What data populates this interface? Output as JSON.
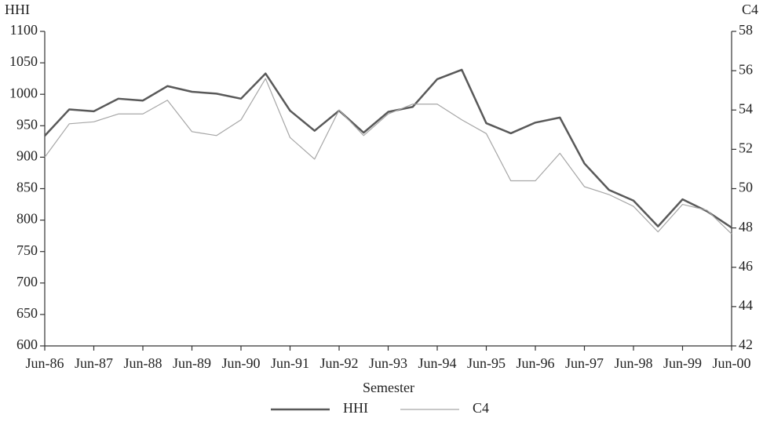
{
  "chart_data": {
    "type": "line",
    "y_label": "HHI",
    "y2_label": "C4",
    "x_label": "Semester",
    "categories": [
      "Jun-86",
      null,
      "Jun-87",
      null,
      "Jun-88",
      null,
      "Jun-89",
      null,
      "Jun-90",
      null,
      "Jun-91",
      null,
      "Jun-92",
      null,
      "Jun-93",
      null,
      "Jun-94",
      null,
      "Jun-95",
      null,
      "Jun-96",
      null,
      "Jun-97",
      null,
      "Jun-98",
      null,
      "Jun-99",
      null,
      "Jun-00"
    ],
    "series": [
      {
        "name": "HHI",
        "color": "#595959",
        "width": 2.5,
        "values": [
          934,
          976,
          973,
          993,
          990,
          1013,
          1004,
          1001,
          993,
          1033,
          974,
          942,
          974,
          939,
          972,
          980,
          1024,
          1039,
          954,
          938,
          955,
          963,
          890,
          848,
          831,
          790,
          833,
          814,
          788
        ]
      },
      {
        "name": "C4",
        "color": "#a6a6a6",
        "width": 1.2,
        "axis": "y2",
        "values": [
          51.6,
          53.3,
          53.4,
          53.8,
          53.8,
          54.5,
          52.9,
          52.7,
          53.5,
          55.6,
          52.6,
          51.5,
          54.0,
          52.7,
          53.8,
          54.3,
          54.3,
          53.5,
          52.8,
          50.4,
          50.4,
          51.8,
          50.1,
          49.7,
          49.1,
          47.8,
          49.2,
          48.9,
          47.7
        ]
      }
    ],
    "ylim": [
      600,
      1100
    ],
    "yticks": [
      600,
      650,
      700,
      750,
      800,
      850,
      900,
      950,
      1000,
      1050,
      1100
    ],
    "y2lim": [
      42,
      58
    ],
    "y2ticks": [
      42,
      44,
      46,
      48,
      50,
      52,
      54,
      56,
      58
    ],
    "grid": false,
    "legend": "bottom"
  }
}
